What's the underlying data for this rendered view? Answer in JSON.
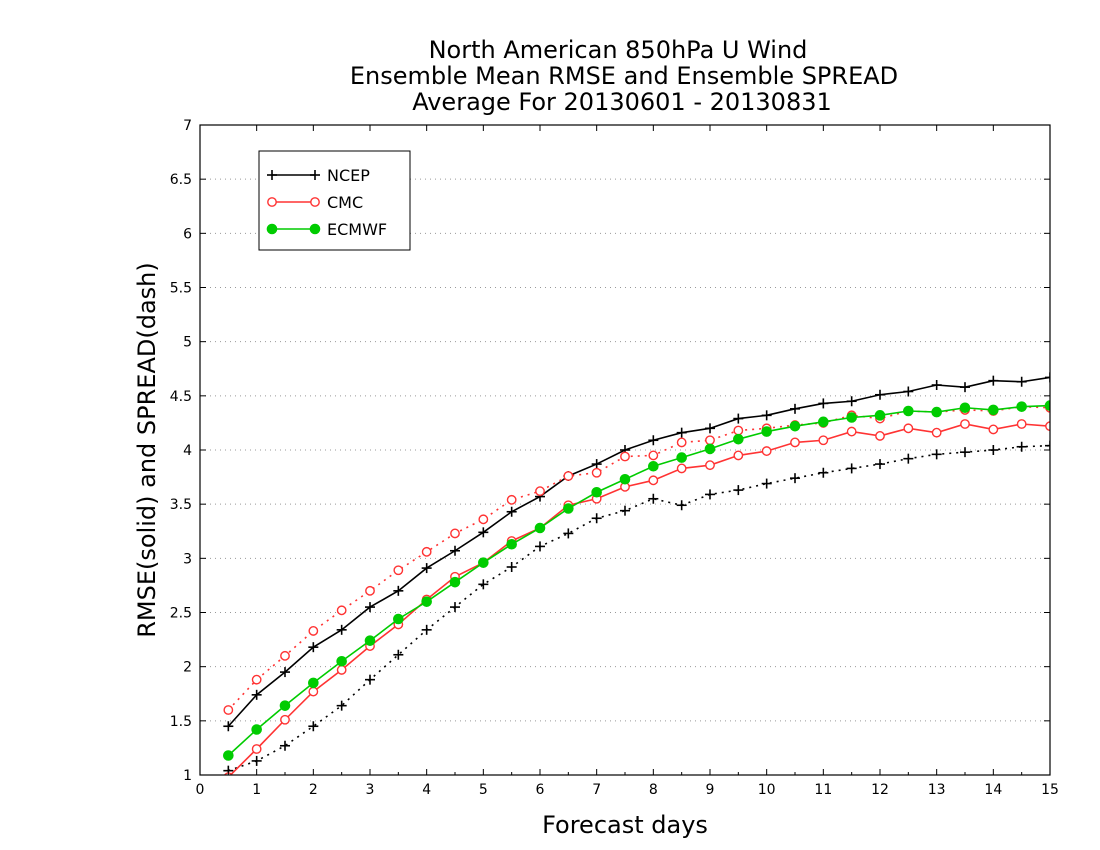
{
  "chart_data": {
    "type": "line",
    "title_lines": [
      "North American 850hPa U Wind",
      "Ensemble Mean RMSE and Ensemble SPREAD",
      "Average For 20130601 - 20130831"
    ],
    "xlabel": "Forecast days",
    "ylabel": "RMSE(solid) and SPREAD(dash)",
    "xlim": [
      0,
      15
    ],
    "ylim": [
      1,
      7
    ],
    "x_ticks": [
      "0",
      "1",
      "2",
      "3",
      "4",
      "5",
      "6",
      "7",
      "8",
      "9",
      "10",
      "11",
      "12",
      "13",
      "14",
      "15"
    ],
    "y_ticks": [
      "1",
      "1.5",
      "2",
      "2.5",
      "3",
      "3.5",
      "4",
      "4.5",
      "5",
      "5.5",
      "6",
      "6.5",
      "7"
    ],
    "grid": "horizontal dotted",
    "legend_position": "top-left",
    "x": [
      0.5,
      1,
      1.5,
      2,
      2.5,
      3,
      3.5,
      4,
      4.5,
      5,
      5.5,
      6,
      6.5,
      7,
      7.5,
      8,
      8.5,
      9,
      9.5,
      10,
      10.5,
      11,
      11.5,
      12,
      12.5,
      13,
      13.5,
      14,
      14.5,
      15
    ],
    "series": [
      {
        "name": "NCEP",
        "color": "#000000",
        "marker": "plus",
        "rmse": [
          1.45,
          1.74,
          1.95,
          2.18,
          2.34,
          2.55,
          2.7,
          2.91,
          3.07,
          3.24,
          3.43,
          3.57,
          3.76,
          3.87,
          4.0,
          4.09,
          4.16,
          4.2,
          4.29,
          4.32,
          4.38,
          4.43,
          4.45,
          4.51,
          4.54,
          4.6,
          4.58,
          4.64,
          4.63,
          4.67
        ],
        "spread": [
          1.04,
          1.13,
          1.27,
          1.45,
          1.64,
          1.88,
          2.11,
          2.34,
          2.55,
          2.76,
          2.92,
          3.11,
          3.23,
          3.37,
          3.44,
          3.55,
          3.49,
          3.59,
          3.63,
          3.69,
          3.74,
          3.79,
          3.83,
          3.87,
          3.92,
          3.96,
          3.98,
          4.0,
          4.03,
          4.04
        ]
      },
      {
        "name": "CMC",
        "color": "#ff3333",
        "marker": "open-circle",
        "rmse": [
          0.98,
          1.24,
          1.51,
          1.77,
          1.97,
          2.19,
          2.39,
          2.62,
          2.83,
          2.96,
          3.16,
          3.28,
          3.49,
          3.55,
          3.66,
          3.72,
          3.83,
          3.86,
          3.95,
          3.99,
          4.07,
          4.09,
          4.17,
          4.13,
          4.2,
          4.16,
          4.24,
          4.19,
          4.24,
          4.22
        ],
        "spread": [
          1.6,
          1.88,
          2.1,
          2.33,
          2.52,
          2.7,
          2.89,
          3.06,
          3.23,
          3.36,
          3.54,
          3.62,
          3.76,
          3.79,
          3.94,
          3.95,
          4.07,
          4.09,
          4.18,
          4.2,
          4.23,
          4.25,
          4.32,
          4.29,
          4.36,
          4.35,
          4.37,
          4.36,
          4.4,
          4.39
        ]
      },
      {
        "name": "ECMWF",
        "color": "#00cc00",
        "marker": "filled-circle",
        "rmse": [
          1.18,
          1.42,
          1.64,
          1.85,
          2.05,
          2.24,
          2.44,
          2.6,
          2.78,
          2.96,
          3.13,
          3.28,
          3.46,
          3.61,
          3.73,
          3.85,
          3.93,
          4.01,
          4.1,
          4.17,
          4.22,
          4.26,
          4.3,
          4.32,
          4.36,
          4.35,
          4.39,
          4.37,
          4.4,
          4.41
        ],
        "spread": []
      }
    ]
  }
}
